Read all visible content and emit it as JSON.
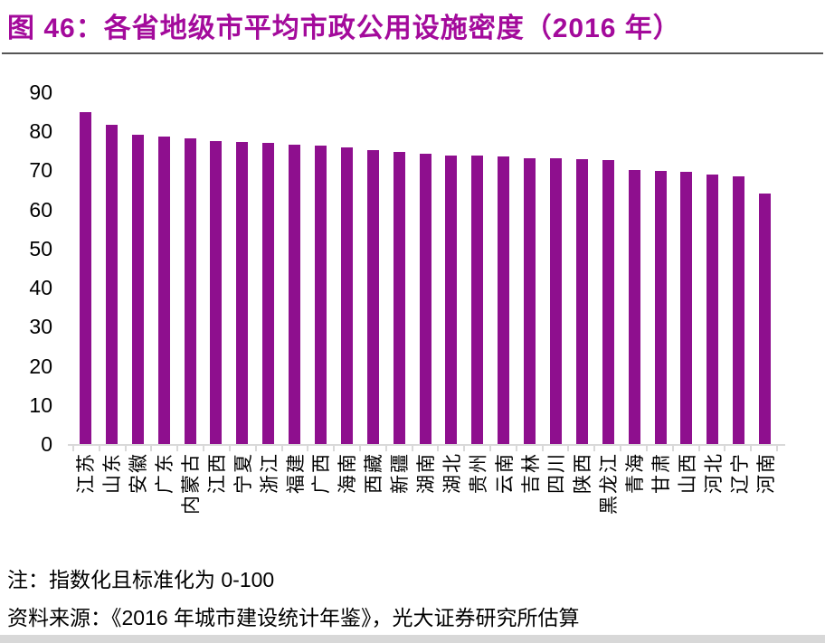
{
  "figure": {
    "title": "图 46：各省地级市平均市政公用设施密度（2016 年）",
    "note": "注：指数化且标准化为 0-100",
    "source": "资料来源：《2016 年城市建设统计年鉴》，光大证券研究所估算"
  },
  "colors": {
    "title": "#A30A9B",
    "bar": "#8E0F8E",
    "axis": "#D9D9D9",
    "title_divider": "#555555",
    "bottom_strip": "#D8D8D8",
    "text": "#000000"
  },
  "chart_data": {
    "type": "bar",
    "title": "各省地级市平均市政公用设施密度（2016 年）",
    "categories": [
      "江苏",
      "山东",
      "安徽",
      "广东",
      "内蒙古",
      "江西",
      "宁夏",
      "浙江",
      "福建",
      "广西",
      "海南",
      "西藏",
      "新疆",
      "湖南",
      "湖北",
      "贵州",
      "云南",
      "吉林",
      "四川",
      "陕西",
      "黑龙江",
      "青海",
      "甘肃",
      "山西",
      "河北",
      "辽宁",
      "河南"
    ],
    "values": [
      85.0,
      81.6,
      79.1,
      78.7,
      78.3,
      77.4,
      77.2,
      77.0,
      76.5,
      76.3,
      76.0,
      75.1,
      74.7,
      74.3,
      73.9,
      73.7,
      73.5,
      73.2,
      73.1,
      72.9,
      72.6,
      70.1,
      69.8,
      69.7,
      69.0,
      68.5,
      64.1
    ],
    "xlabel": "",
    "ylabel": "",
    "ylim": [
      0,
      90
    ],
    "yticks": [
      0,
      10,
      20,
      30,
      40,
      50,
      60,
      70,
      80,
      90
    ],
    "grid": false,
    "legend": "none",
    "x_label_rotation": -90,
    "bar_color": "#8E0F8E"
  }
}
